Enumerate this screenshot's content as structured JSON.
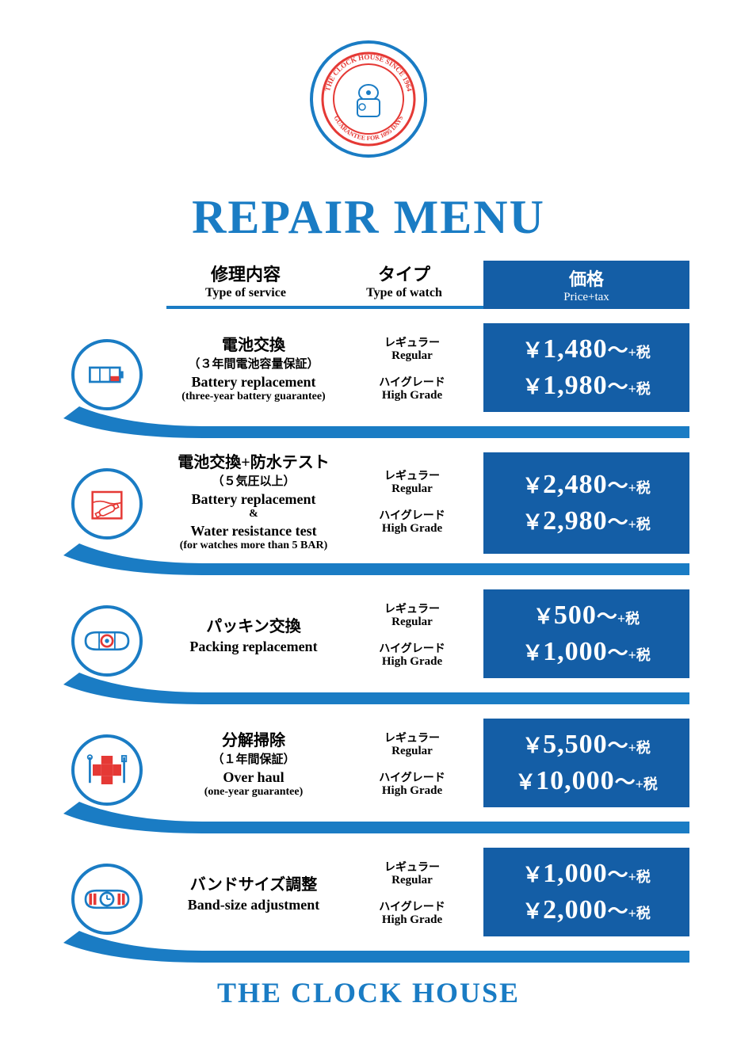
{
  "brand_color": "#1a7cc4",
  "price_bg": "#145ea6",
  "accent_red": "#e53935",
  "title": "REPAIR MENU",
  "footer": "THE CLOCK HOUSE",
  "logo": {
    "outer_text": "THE CLOCK HOUSE SINCE 1964",
    "inner_text": "GUARANTEE FOR 1095 DAYS"
  },
  "headers": {
    "service_jp": "修理内容",
    "service_en": "Type of service",
    "type_jp": "タイプ",
    "type_en": "Type of watch",
    "price_jp": "価格",
    "price_en": "Price+tax"
  },
  "type_labels": {
    "regular_jp": "レギュラー",
    "regular_en": "Regular",
    "high_jp": "ハイグレード",
    "high_en": "High Grade"
  },
  "price_suffix": "～+税",
  "services": [
    {
      "icon": "battery",
      "jp": "電池交換",
      "jp_sub": "（３年間電池容量保証）",
      "en": "Battery replacement",
      "en_sub": "(three-year battery guarantee)",
      "price_regular": "1,480",
      "price_high": "1,980"
    },
    {
      "icon": "water",
      "jp": "電池交換+防水テスト",
      "jp_sub": "（５気圧以上）",
      "en": "Battery replacement",
      "amp": "&",
      "en2": "Water resistance test",
      "en_sub": "(for watches more than 5 BAR)",
      "price_regular": "2,480",
      "price_high": "2,980"
    },
    {
      "icon": "packing",
      "jp": "パッキン交換",
      "en": "Packing replacement",
      "price_regular": "500",
      "price_high": "1,000"
    },
    {
      "icon": "overhaul",
      "jp": "分解掃除",
      "jp_sub": "（１年間保証）",
      "en": "Over haul",
      "en_sub": "(one-year guarantee)",
      "price_regular": "5,500",
      "price_high": "10,000"
    },
    {
      "icon": "band",
      "jp": "バンドサイズ調整",
      "en": "Band-size adjustment",
      "price_regular": "1,000",
      "price_high": "2,000"
    }
  ]
}
